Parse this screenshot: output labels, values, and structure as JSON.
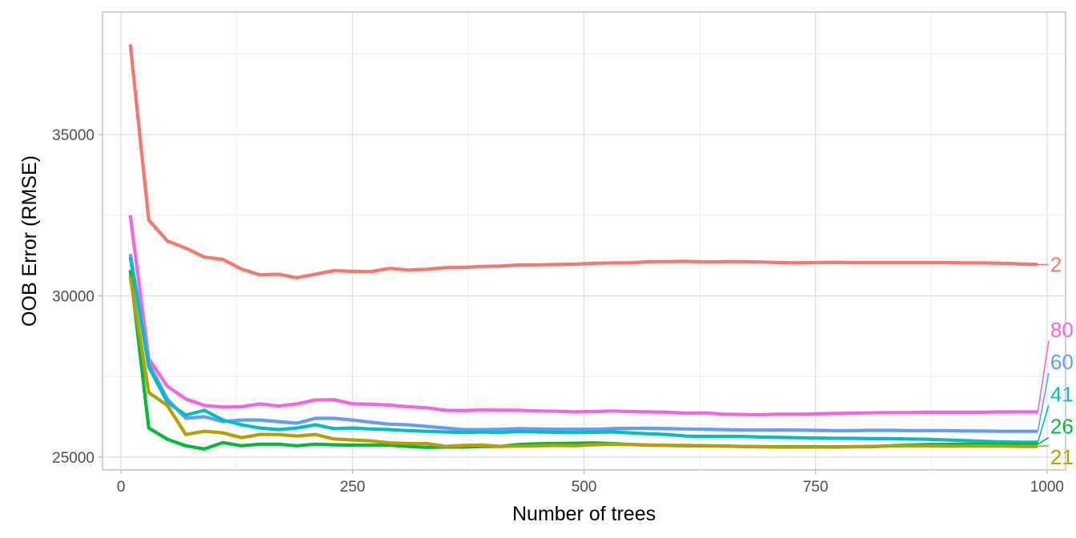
{
  "chart_data": {
    "type": "line",
    "xlabel": "Number of trees",
    "ylabel": "OOB Error (RMSE)",
    "xlim": [
      -20,
      1020
    ],
    "ylim": [
      24600,
      38800
    ],
    "x_ticks": [
      0,
      250,
      500,
      750,
      1000
    ],
    "x_tick_labels": [
      "0",
      "250",
      "500",
      "750",
      "1000"
    ],
    "y_ticks": [
      25000,
      30000,
      35000
    ],
    "y_tick_labels": [
      "25000",
      "30000",
      "35000"
    ],
    "grid": true,
    "legend": "none",
    "series": [
      {
        "name": "2",
        "color": "#F8766D",
        "label_y": 30970,
        "x": [
          10,
          30,
          50,
          70,
          90,
          110,
          130,
          150,
          170,
          190,
          210,
          230,
          250,
          270,
          290,
          310,
          330,
          350,
          370,
          390,
          410,
          430,
          450,
          470,
          490,
          510,
          530,
          550,
          570,
          590,
          610,
          630,
          650,
          670,
          690,
          710,
          730,
          750,
          770,
          790,
          810,
          830,
          850,
          870,
          890,
          910,
          930,
          950,
          970,
          990
        ],
        "y": [
          37800,
          32350,
          31700,
          31480,
          31200,
          31130,
          30830,
          30650,
          30670,
          30560,
          30670,
          30780,
          30760,
          30750,
          30850,
          30800,
          30820,
          30870,
          30880,
          30910,
          30920,
          30960,
          30960,
          30970,
          30980,
          31010,
          31020,
          31020,
          31060,
          31060,
          31070,
          31050,
          31060,
          31060,
          31050,
          31030,
          31020,
          31030,
          31040,
          31030,
          31030,
          31030,
          31030,
          31030,
          31030,
          31020,
          31020,
          31010,
          30990,
          30970
        ]
      },
      {
        "name": "80",
        "color": "#F564E3",
        "label_y": 28950,
        "x": [
          10,
          30,
          50,
          70,
          90,
          110,
          130,
          150,
          170,
          190,
          210,
          230,
          250,
          270,
          290,
          310,
          330,
          350,
          370,
          390,
          410,
          430,
          450,
          470,
          490,
          510,
          530,
          550,
          570,
          590,
          610,
          630,
          650,
          670,
          690,
          710,
          730,
          750,
          770,
          790,
          810,
          830,
          850,
          870,
          890,
          910,
          930,
          950,
          970,
          990
        ],
        "y": [
          32500,
          28050,
          27200,
          26800,
          26600,
          26550,
          26560,
          26650,
          26580,
          26650,
          26770,
          26780,
          26650,
          26640,
          26610,
          26560,
          26530,
          26450,
          26440,
          26460,
          26450,
          26450,
          26430,
          26420,
          26400,
          26410,
          26430,
          26410,
          26400,
          26390,
          26360,
          26370,
          26330,
          26320,
          26310,
          26330,
          26330,
          26340,
          26350,
          26360,
          26370,
          26380,
          26380,
          26390,
          26390,
          26390,
          26390,
          26400,
          26400,
          26400
        ]
      },
      {
        "name": "60",
        "color": "#619CFF",
        "label_y": 27950,
        "x": [
          10,
          30,
          50,
          70,
          90,
          110,
          130,
          150,
          170,
          190,
          210,
          230,
          250,
          270,
          290,
          310,
          330,
          350,
          370,
          390,
          410,
          430,
          450,
          470,
          490,
          510,
          530,
          550,
          570,
          590,
          610,
          630,
          650,
          670,
          690,
          710,
          730,
          750,
          770,
          790,
          810,
          830,
          850,
          870,
          890,
          910,
          930,
          950,
          970,
          990
        ],
        "y": [
          31300,
          27900,
          26800,
          26200,
          26250,
          26100,
          26150,
          26150,
          26100,
          26050,
          26200,
          26200,
          26150,
          26080,
          26020,
          26000,
          25950,
          25900,
          25850,
          25850,
          25860,
          25880,
          25870,
          25860,
          25860,
          25860,
          25880,
          25890,
          25890,
          25880,
          25870,
          25860,
          25850,
          25840,
          25840,
          25840,
          25840,
          25830,
          25820,
          25820,
          25830,
          25830,
          25820,
          25820,
          25820,
          25810,
          25810,
          25800,
          25800,
          25800
        ]
      },
      {
        "name": "41",
        "color": "#00BFC4",
        "label_y": 26950,
        "x": [
          10,
          30,
          50,
          70,
          90,
          110,
          130,
          150,
          170,
          190,
          210,
          230,
          250,
          270,
          290,
          310,
          330,
          350,
          370,
          390,
          410,
          430,
          450,
          470,
          490,
          510,
          530,
          550,
          570,
          590,
          610,
          630,
          650,
          670,
          690,
          710,
          730,
          750,
          770,
          790,
          810,
          830,
          850,
          870,
          890,
          910,
          930,
          950,
          970,
          990
        ],
        "y": [
          31200,
          27800,
          26700,
          26300,
          26450,
          26150,
          26000,
          25900,
          25850,
          25900,
          26000,
          25880,
          25900,
          25870,
          25850,
          25820,
          25800,
          25780,
          25760,
          25780,
          25760,
          25800,
          25780,
          25770,
          25760,
          25770,
          25780,
          25750,
          25720,
          25700,
          25650,
          25640,
          25640,
          25640,
          25620,
          25610,
          25600,
          25590,
          25580,
          25580,
          25570,
          25570,
          25560,
          25550,
          25530,
          25510,
          25490,
          25470,
          25460,
          25460
        ]
      },
      {
        "name": "26",
        "color": "#00BA38",
        "label_y": 25950,
        "x": [
          10,
          30,
          50,
          70,
          90,
          110,
          130,
          150,
          170,
          190,
          210,
          230,
          250,
          270,
          290,
          310,
          330,
          350,
          370,
          390,
          410,
          430,
          450,
          470,
          490,
          510,
          530,
          550,
          570,
          590,
          610,
          630,
          650,
          670,
          690,
          710,
          730,
          750,
          770,
          790,
          810,
          830,
          850,
          870,
          890,
          910,
          930,
          950,
          970,
          990
        ],
        "y": [
          30800,
          25900,
          25550,
          25350,
          25250,
          25450,
          25350,
          25400,
          25400,
          25350,
          25400,
          25380,
          25370,
          25370,
          25370,
          25330,
          25300,
          25310,
          25310,
          25330,
          25330,
          25390,
          25410,
          25420,
          25430,
          25440,
          25420,
          25390,
          25370,
          25360,
          25350,
          25350,
          25340,
          25330,
          25320,
          25320,
          25320,
          25320,
          25310,
          25320,
          25320,
          25350,
          25370,
          25390,
          25390,
          25400,
          25400,
          25400,
          25400,
          25400
        ]
      },
      {
        "name": "21",
        "color": "#B79F00",
        "label_y": 25000,
        "x": [
          10,
          30,
          50,
          70,
          90,
          110,
          130,
          150,
          170,
          190,
          210,
          230,
          250,
          270,
          290,
          310,
          330,
          350,
          370,
          390,
          410,
          430,
          450,
          470,
          490,
          510,
          530,
          550,
          570,
          590,
          610,
          630,
          650,
          670,
          690,
          710,
          730,
          750,
          770,
          790,
          810,
          830,
          850,
          870,
          890,
          910,
          930,
          950,
          970,
          990
        ],
        "y": [
          30600,
          27000,
          26600,
          25700,
          25800,
          25750,
          25600,
          25700,
          25700,
          25650,
          25700,
          25560,
          25530,
          25500,
          25440,
          25420,
          25420,
          25330,
          25360,
          25370,
          25330,
          25340,
          25350,
          25360,
          25350,
          25380,
          25400,
          25390,
          25370,
          25360,
          25360,
          25350,
          25340,
          25330,
          25320,
          25310,
          25310,
          25310,
          25320,
          25320,
          25330,
          25340,
          25350,
          25350,
          25340,
          25340,
          25340,
          25340,
          25330,
          25330
        ]
      }
    ]
  }
}
